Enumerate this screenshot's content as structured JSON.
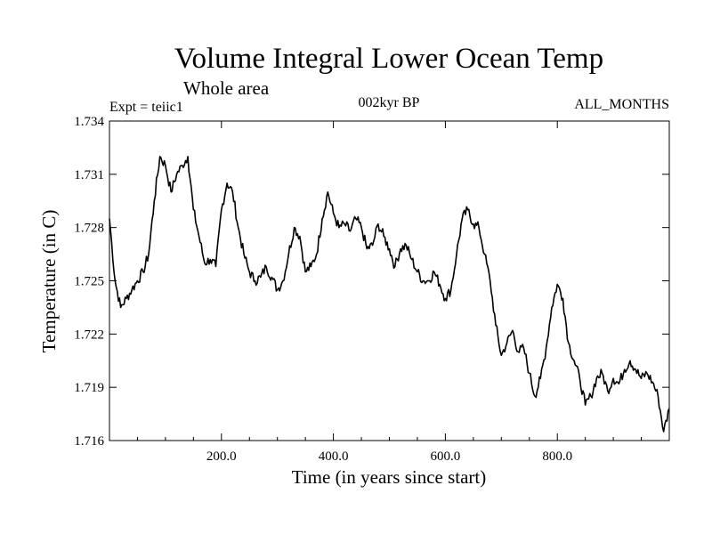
{
  "header": {
    "title": "Volume Integral Lower Ocean Temp",
    "subtitle": "Whole area",
    "expt": "Expt = teiic1",
    "period": "002kyr BP",
    "months": "ALL_MONTHS"
  },
  "chart_data": {
    "type": "line",
    "title": "Volume Integral Lower Ocean Temp",
    "subtitle": "Whole area",
    "xlabel": "Time (in years since start)",
    "ylabel": "Temperature (in C)",
    "xlim": [
      0,
      1000
    ],
    "ylim": [
      1.716,
      1.734
    ],
    "xticks": [
      200,
      400,
      600,
      800
    ],
    "xtick_labels": [
      "200.0",
      "400.0",
      "600.0",
      "800.0"
    ],
    "yticks": [
      1.716,
      1.719,
      1.722,
      1.725,
      1.728,
      1.731,
      1.734
    ],
    "ytick_labels": [
      "1.716",
      "1.719",
      "1.722",
      "1.725",
      "1.728",
      "1.731",
      "1.734"
    ],
    "grid": false,
    "legend": "none",
    "series": [
      {
        "x": [
          0,
          10,
          20,
          30,
          40,
          50,
          60,
          70,
          80,
          90,
          100,
          110,
          120,
          130,
          140,
          150,
          160,
          170,
          180,
          190,
          200,
          210,
          220,
          230,
          240,
          250,
          260,
          270,
          280,
          290,
          300,
          310,
          320,
          330,
          340,
          350,
          360,
          370,
          380,
          390,
          400,
          410,
          420,
          430,
          440,
          450,
          460,
          470,
          480,
          490,
          500,
          510,
          520,
          530,
          540,
          550,
          560,
          570,
          580,
          590,
          600,
          610,
          620,
          630,
          640,
          650,
          660,
          670,
          680,
          690,
          700,
          710,
          720,
          730,
          740,
          750,
          760,
          770,
          780,
          790,
          800,
          810,
          820,
          830,
          840,
          850,
          860,
          870,
          880,
          890,
          900,
          910,
          920,
          930,
          940,
          950,
          960,
          970,
          980,
          990,
          1000
        ],
        "y": [
          1.7285,
          1.725,
          1.7235,
          1.724,
          1.7245,
          1.725,
          1.7255,
          1.7265,
          1.7295,
          1.732,
          1.7315,
          1.73,
          1.731,
          1.7315,
          1.732,
          1.729,
          1.7275,
          1.726,
          1.7262,
          1.7258,
          1.729,
          1.7305,
          1.73,
          1.728,
          1.7265,
          1.7255,
          1.725,
          1.7252,
          1.7258,
          1.7252,
          1.7245,
          1.725,
          1.7265,
          1.728,
          1.7275,
          1.7255,
          1.7258,
          1.7265,
          1.7285,
          1.73,
          1.7288,
          1.728,
          1.7282,
          1.7278,
          1.7285,
          1.728,
          1.7268,
          1.727,
          1.7282,
          1.7275,
          1.7268,
          1.7258,
          1.7268,
          1.727,
          1.7262,
          1.7255,
          1.725,
          1.725,
          1.7255,
          1.7248,
          1.724,
          1.7245,
          1.7265,
          1.7285,
          1.729,
          1.7282,
          1.728,
          1.7265,
          1.725,
          1.7225,
          1.7208,
          1.7215,
          1.7222,
          1.721,
          1.7212,
          1.7198,
          1.7185,
          1.7195,
          1.7212,
          1.7235,
          1.7248,
          1.724,
          1.7215,
          1.7205,
          1.7195,
          1.718,
          1.7185,
          1.7195,
          1.7198,
          1.7188,
          1.7195,
          1.7192,
          1.72,
          1.7205,
          1.72,
          1.7195,
          1.7198,
          1.7193,
          1.7185,
          1.7165,
          1.7178
        ]
      }
    ]
  }
}
